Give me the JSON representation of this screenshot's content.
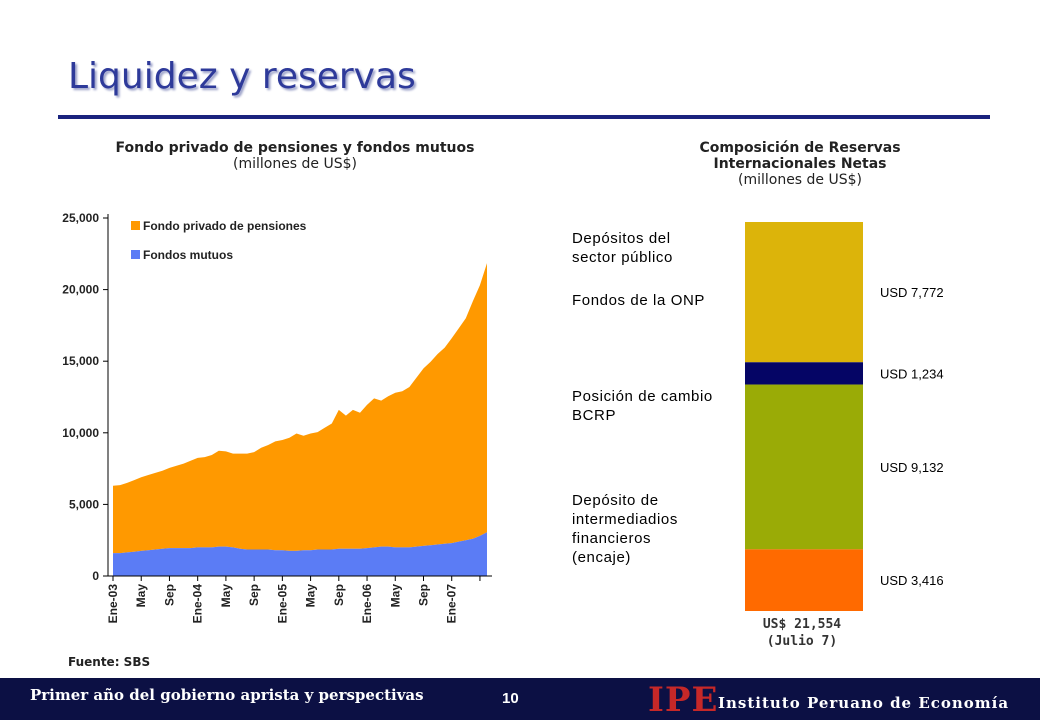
{
  "slide": {
    "title": "Liquidez y reservas",
    "source": "Fuente: SBS",
    "footer_text": "Primer año del gobierno aprista y perspectivas",
    "page_number": "10",
    "logo_abbr": "IPE",
    "logo_name": "Instituto Peruano de Economía"
  },
  "colors": {
    "title": "#2e3a9a",
    "footer_bg": "#0c1044",
    "pension": "#ff9900",
    "mutual": "#5b7cf5",
    "logo_red": "#c62828"
  },
  "chart_data": [
    {
      "type": "area",
      "stacked": true,
      "title": "Fondo privado de pensiones y fondos mutuos",
      "subtitle": "(millones de US$)",
      "x_tick_labels": [
        "Ene-03",
        "May",
        "Sep",
        "Ene-04",
        "May",
        "Sep",
        "Ene-05",
        "May",
        "Sep",
        "Ene-06",
        "May",
        "Sep",
        "Ene-07"
      ],
      "y_tick_labels": [
        "0",
        "5,000",
        "10,000",
        "15,000",
        "20,000",
        "25,000"
      ],
      "ylim": [
        0,
        25000
      ],
      "legend_position": "top-left",
      "x": [
        "2003-01",
        "2003-02",
        "2003-03",
        "2003-04",
        "2003-05",
        "2003-06",
        "2003-07",
        "2003-08",
        "2003-09",
        "2003-10",
        "2003-11",
        "2003-12",
        "2004-01",
        "2004-02",
        "2004-03",
        "2004-04",
        "2004-05",
        "2004-06",
        "2004-07",
        "2004-08",
        "2004-09",
        "2004-10",
        "2004-11",
        "2004-12",
        "2005-01",
        "2005-02",
        "2005-03",
        "2005-04",
        "2005-05",
        "2005-06",
        "2005-07",
        "2005-08",
        "2005-09",
        "2005-10",
        "2005-11",
        "2005-12",
        "2006-01",
        "2006-02",
        "2006-03",
        "2006-04",
        "2006-05",
        "2006-06",
        "2006-07",
        "2006-08",
        "2006-09",
        "2006-10",
        "2006-11",
        "2006-12",
        "2007-01",
        "2007-02",
        "2007-03",
        "2007-04",
        "2007-05",
        "2007-06"
      ],
      "series": [
        {
          "name": "Fondos mutuos",
          "values": [
            1600,
            1600,
            1650,
            1700,
            1750,
            1800,
            1850,
            1900,
            1950,
            1950,
            1950,
            1950,
            2000,
            2000,
            2000,
            2050,
            2050,
            2000,
            1900,
            1850,
            1850,
            1850,
            1850,
            1800,
            1800,
            1750,
            1750,
            1800,
            1800,
            1850,
            1850,
            1850,
            1900,
            1900,
            1900,
            1900,
            1950,
            2000,
            2050,
            2050,
            2000,
            2000,
            2000,
            2050,
            2100,
            2150,
            2200,
            2250,
            2300,
            2400,
            2500,
            2600,
            2800,
            3050
          ]
        },
        {
          "name": "Fondo privado de pensiones",
          "values": [
            4700,
            4750,
            4850,
            5000,
            5150,
            5250,
            5350,
            5450,
            5600,
            5750,
            5900,
            6100,
            6250,
            6300,
            6450,
            6700,
            6650,
            6550,
            6650,
            6700,
            6800,
            7100,
            7300,
            7600,
            7700,
            7900,
            8200,
            8000,
            8150,
            8200,
            8500,
            8800,
            9700,
            9300,
            9700,
            9500,
            10000,
            10400,
            10200,
            10500,
            10800,
            10900,
            11200,
            11800,
            12400,
            12800,
            13300,
            13700,
            14300,
            14900,
            15500,
            16600,
            17500,
            18800
          ]
        }
      ]
    },
    {
      "type": "bar",
      "stacked": true,
      "title": "Composición de Reservas Internacionales Netas",
      "subtitle": "(millones de US$)",
      "total_label": "US$ 21,554",
      "date_label": "(Julio 7)",
      "segments": [
        {
          "label": "Depósitos del sector público",
          "value": 7772,
          "value_label": "USD 7,772",
          "color": "#dcb40a"
        },
        {
          "label": "Fondos de la ONP",
          "value": 1234,
          "value_label": "USD 1,234",
          "color": "#050565"
        },
        {
          "label": "Posición de cambio BCRP",
          "value": 9132,
          "value_label": "USD 9,132",
          "color": "#9aab06"
        },
        {
          "label": "Depósito de intermediadios financieros (encaje)",
          "value": 3416,
          "value_label": "USD 3,416",
          "color": "#ff6a00"
        }
      ]
    }
  ]
}
